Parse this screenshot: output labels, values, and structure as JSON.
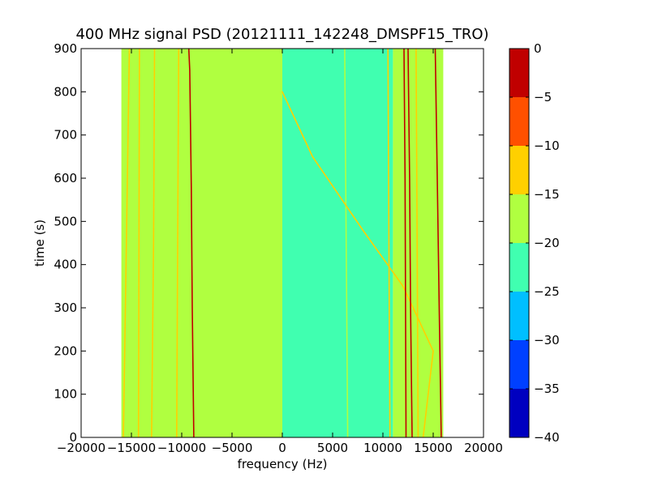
{
  "chart_data": {
    "type": "heatmap",
    "title": "400 MHz signal PSD (20121111_142248_DMSPF15_TRO)",
    "xlabel": "frequency (Hz)",
    "ylabel": "time (s)",
    "xlim": [
      -20000,
      20000
    ],
    "ylim": [
      0,
      900
    ],
    "xticks": [
      -20000,
      -15000,
      -10000,
      -5000,
      0,
      5000,
      10000,
      15000,
      20000
    ],
    "xtick_labels": [
      "−20000",
      "−15000",
      "−10000",
      "−5000",
      "0",
      "5000",
      "10000",
      "15000",
      "20000"
    ],
    "yticks": [
      0,
      100,
      200,
      300,
      400,
      500,
      600,
      700,
      800,
      900
    ],
    "ytick_labels": [
      "0",
      "100",
      "200",
      "300",
      "400",
      "500",
      "600",
      "700",
      "800",
      "900"
    ],
    "data_extent": {
      "freq": [
        -16000,
        16000
      ],
      "time": [
        0,
        900
      ]
    },
    "colorbar": {
      "levels": [
        -40,
        -35,
        -30,
        -25,
        -20,
        -15,
        -10,
        -5,
        0
      ],
      "tick_labels": [
        "−40",
        "−35",
        "−30",
        "−25",
        "−20",
        "−15",
        "−10",
        "−5",
        "0"
      ],
      "colors": [
        "#0000c0",
        "#0040ff",
        "#00bfff",
        "#40ffb0",
        "#b0ff40",
        "#ffd000",
        "#ff5000",
        "#c00000"
      ]
    },
    "background_regions": [
      {
        "freq": [
          -16000,
          0
        ],
        "level": [
          -20,
          -15
        ]
      },
      {
        "freq": [
          0,
          11000
        ],
        "level": [
          -25,
          -20
        ]
      },
      {
        "freq": [
          11000,
          16000
        ],
        "level": [
          -20,
          -15
        ]
      }
    ],
    "traces": [
      {
        "level": [
          -15,
          -10
        ],
        "points": [
          [
            -15800,
            0
          ],
          [
            -15500,
            450
          ],
          [
            -15200,
            900
          ]
        ]
      },
      {
        "level": [
          -15,
          -10
        ],
        "points": [
          [
            -14300,
            0
          ],
          [
            -14200,
            900
          ]
        ]
      },
      {
        "level": [
          -15,
          -10
        ],
        "points": [
          [
            -13000,
            0
          ],
          [
            -12800,
            450
          ],
          [
            -12700,
            900
          ]
        ]
      },
      {
        "level": [
          -15,
          -10
        ],
        "points": [
          [
            -10500,
            0
          ],
          [
            -10400,
            450
          ],
          [
            -10300,
            900
          ]
        ]
      },
      {
        "level": [
          -5,
          0
        ],
        "points": [
          [
            -8800,
            0
          ],
          [
            -8950,
            300
          ],
          [
            -9050,
            580
          ],
          [
            -9200,
            850
          ],
          [
            -9300,
            900
          ]
        ]
      },
      {
        "level": [
          -20,
          -15
        ],
        "points": [
          [
            6500,
            0
          ],
          [
            6400,
            300
          ],
          [
            6300,
            600
          ],
          [
            6200,
            900
          ]
        ]
      },
      {
        "level": [
          -15,
          -10
        ],
        "points": [
          [
            14000,
            0
          ],
          [
            15000,
            200
          ],
          [
            12000,
            350
          ],
          [
            8000,
            480
          ],
          [
            3000,
            650
          ],
          [
            0,
            800
          ]
        ]
      },
      {
        "level": [
          -15,
          -10
        ],
        "points": [
          [
            10700,
            0
          ],
          [
            10600,
            450
          ],
          [
            10500,
            900
          ]
        ]
      },
      {
        "level": [
          -5,
          0
        ],
        "points": [
          [
            12300,
            0
          ],
          [
            12250,
            300
          ],
          [
            12200,
            600
          ],
          [
            12100,
            900
          ]
        ]
      },
      {
        "level": [
          -5,
          0
        ],
        "points": [
          [
            12900,
            0
          ],
          [
            12750,
            300
          ],
          [
            12650,
            600
          ],
          [
            12500,
            900
          ]
        ]
      },
      {
        "level": [
          -15,
          -10
        ],
        "points": [
          [
            13500,
            0
          ],
          [
            13400,
            450
          ],
          [
            13300,
            900
          ]
        ]
      },
      {
        "level": [
          -5,
          0
        ],
        "points": [
          [
            15800,
            0
          ],
          [
            15600,
            300
          ],
          [
            15400,
            600
          ],
          [
            15200,
            900
          ]
        ]
      }
    ]
  }
}
